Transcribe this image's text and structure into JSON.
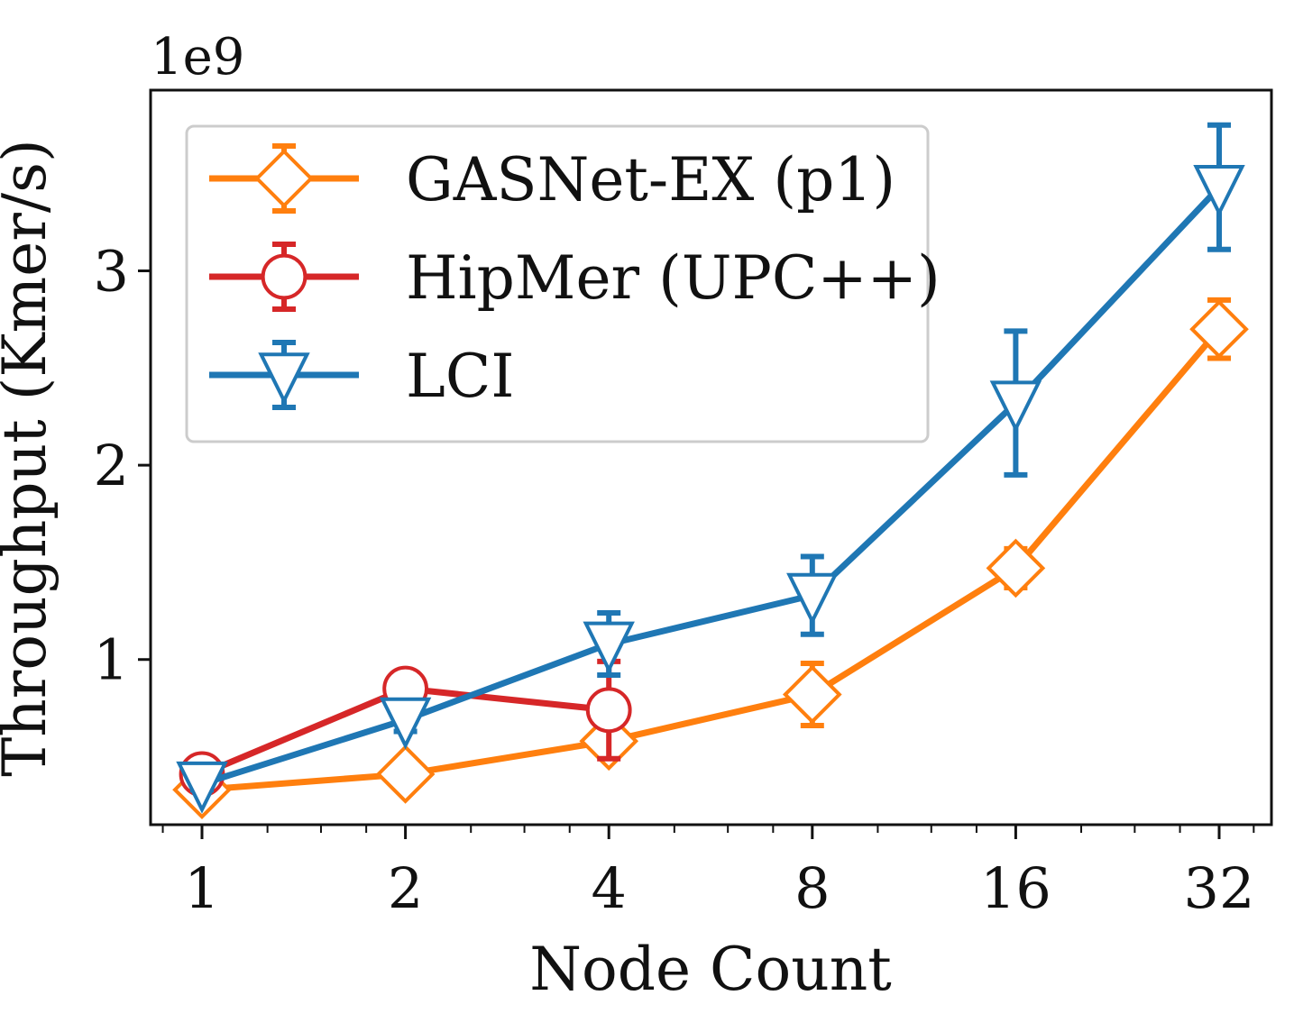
{
  "chart_data": {
    "type": "line",
    "xlabel": "Node Count",
    "ylabel": "Throughput (Kmer/s)",
    "y_multiplier_label": "1e9",
    "x_scale": "log2",
    "x_ticks": [
      1,
      2,
      4,
      8,
      16,
      32
    ],
    "x_tick_labels": [
      "1",
      "2",
      "4",
      "8",
      "16",
      "32"
    ],
    "ylim": [
      0.15,
      3.93
    ],
    "y_ticks": [
      1,
      2,
      3
    ],
    "y_tick_labels": [
      "1",
      "2",
      "3"
    ],
    "legend_position": "upper-left",
    "grid": false,
    "series": [
      {
        "name": "GASNet-EX (p1)",
        "color": "#ff7f0e",
        "marker": "diamond",
        "x": [
          1,
          2,
          4,
          8,
          16,
          32
        ],
        "y": [
          0.33,
          0.41,
          0.58,
          0.82,
          1.47,
          2.7
        ],
        "err": [
          0.03,
          0.03,
          0.04,
          0.16,
          0.1,
          0.15
        ]
      },
      {
        "name": "HipMer (UPC++)",
        "color": "#d62728",
        "marker": "circle",
        "x": [
          1,
          2,
          4
        ],
        "y": [
          0.41,
          0.85,
          0.74
        ],
        "err": [
          0.03,
          0.03,
          0.25
        ]
      },
      {
        "name": "LCI",
        "color": "#1f77b4",
        "marker": "triangle-down",
        "x": [
          1,
          2,
          4,
          8,
          16,
          32
        ],
        "y": [
          0.36,
          0.69,
          1.08,
          1.33,
          2.32,
          3.43
        ],
        "err": [
          0.03,
          0.06,
          0.16,
          0.2,
          0.37,
          0.32
        ]
      }
    ]
  }
}
